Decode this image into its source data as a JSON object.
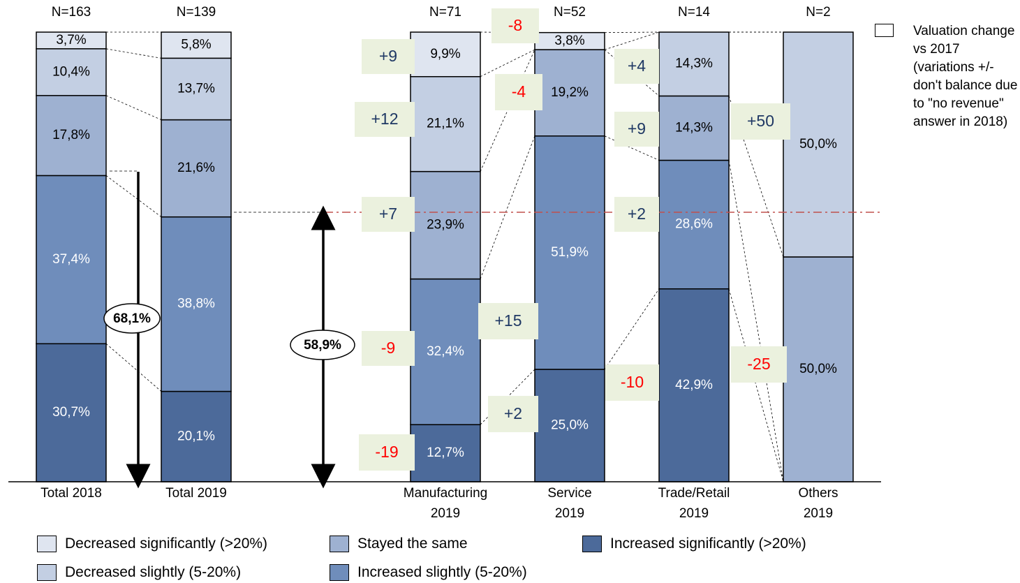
{
  "chart_data": {
    "type": "bar",
    "stacked": true,
    "categories": [
      "Total 2018",
      "Total 2019",
      "Manufacturing\n2019",
      "Service\n2019",
      "Trade/Retail\n2019",
      "Others\n2019"
    ],
    "n_labels": [
      "N=163",
      "N=139",
      "N=71",
      "N=52",
      "N=14",
      "N=2"
    ],
    "ylim": [
      0,
      100
    ],
    "series": [
      {
        "name": "Increased significantly (>20%)",
        "color": "#4c6a9a",
        "text_color": "#ffffff",
        "values": [
          30.7,
          20.1,
          12.7,
          25.0,
          42.9,
          0
        ],
        "labels": [
          "30,7%",
          "20,1%",
          "12,7%",
          "25,0%",
          "42,9%",
          ""
        ]
      },
      {
        "name": "Increased slightly (5-20%)",
        "color": "#6f8dbb",
        "text_color": "#ffffff",
        "values": [
          37.4,
          38.8,
          32.4,
          51.9,
          28.6,
          0
        ],
        "labels": [
          "37,4%",
          "38,8%",
          "32,4%",
          "51,9%",
          "28,6%",
          ""
        ]
      },
      {
        "name": "Stayed the same",
        "color": "#9eb1d1",
        "text_color": "#000000",
        "values": [
          17.8,
          21.6,
          23.9,
          19.2,
          14.3,
          50.0
        ],
        "labels": [
          "17,8%",
          "21,6%",
          "23,9%",
          "19,2%",
          "14,3%",
          "50,0%"
        ]
      },
      {
        "name": "Decreased slightly (5-20%)",
        "color": "#c3cfe3",
        "text_color": "#000000",
        "values": [
          10.4,
          13.7,
          21.1,
          0,
          14.3,
          50.0
        ],
        "labels": [
          "10,4%",
          "13,7%",
          "21,1%",
          "",
          "14,3%",
          "50,0%"
        ]
      },
      {
        "name": "Decreased significantly (>20%)",
        "color": "#dfe5f0",
        "text_color": "#000000",
        "values": [
          3.7,
          5.8,
          9.9,
          3.8,
          0,
          0
        ],
        "labels": [
          "3,7%",
          "5,8%",
          "9,9%",
          "3,8%",
          "",
          ""
        ]
      }
    ],
    "annotations": {
      "ovals": [
        "68,1%",
        "58,9%"
      ],
      "changes": [
        {
          "text": "+9",
          "color": "#1f3864"
        },
        {
          "text": "+12",
          "color": "#1f3864"
        },
        {
          "text": "+7",
          "color": "#1f3864"
        },
        {
          "text": "-9",
          "color": "#ff0000"
        },
        {
          "text": "-19",
          "color": "#ff0000"
        },
        {
          "text": "-8",
          "color": "#ff0000"
        },
        {
          "text": "-4",
          "color": "#ff0000"
        },
        {
          "text": "+15",
          "color": "#1f3864"
        },
        {
          "text": "+2",
          "color": "#1f3864"
        },
        {
          "text": "+4",
          "color": "#1f3864"
        },
        {
          "text": "+9",
          "color": "#1f3864"
        },
        {
          "text": "+2",
          "color": "#1f3864"
        },
        {
          "text": "-10",
          "color": "#ff0000"
        },
        {
          "text": "+50",
          "color": "#1f3864"
        },
        {
          "text": "-25",
          "color": "#ff0000"
        }
      ],
      "note": "Valuation change vs 2017 (variations +/- don't balance due to \"no revenue\" answer in 2018)"
    },
    "legend": {
      "placement": "bottom",
      "items": [
        {
          "label": "Decreased significantly (>20%)",
          "color": "#dfe5f0"
        },
        {
          "label": "Stayed the same",
          "color": "#9eb1d1"
        },
        {
          "label": "Increased significantly (>20%)",
          "color": "#4c6a9a"
        },
        {
          "label": "Decreased slightly (5-20%)",
          "color": "#c3cfe3"
        },
        {
          "label": "Increased slightly (5-20%)",
          "color": "#6f8dbb"
        }
      ]
    },
    "note_color": "#ebf1de"
  }
}
